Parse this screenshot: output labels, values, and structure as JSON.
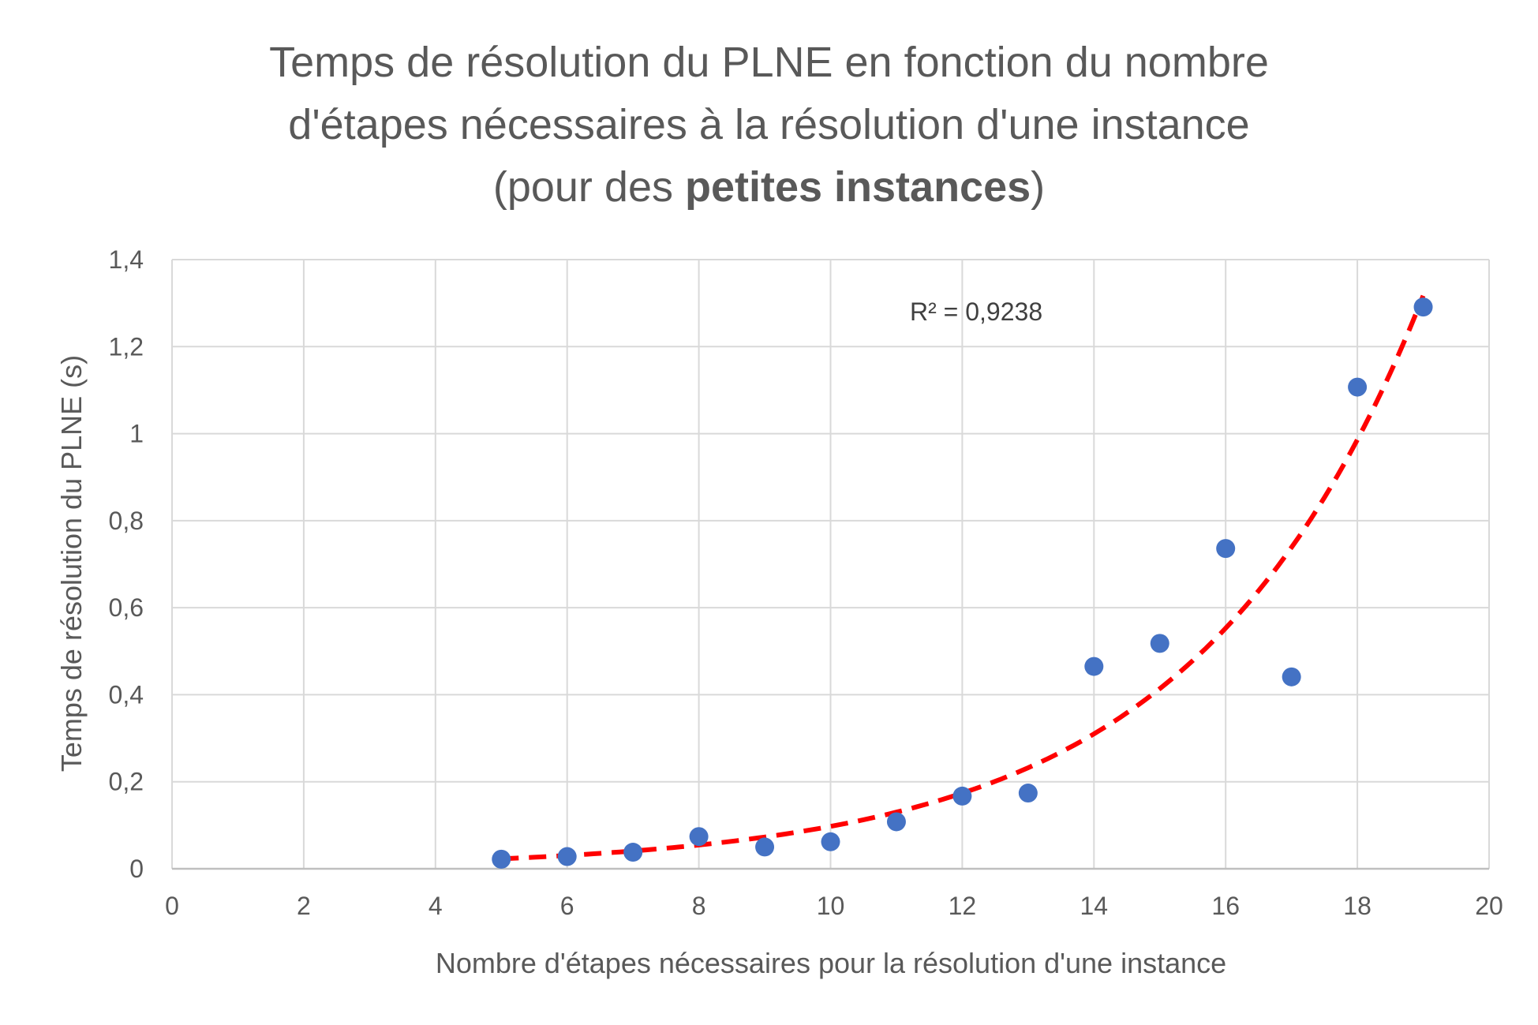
{
  "chart_data": {
    "type": "scatter",
    "title_line1": "Temps de résolution du PLNE en fonction du nombre",
    "title_line2": "d'étapes nécessaires à la résolution d'une instance",
    "title_line3_prefix": "(pour des ",
    "title_line3_bold": "petites instances",
    "title_line3_suffix": ")",
    "xlabel": "Nombre d'étapes nécessaires pour la résolution d'une instance",
    "ylabel": "Temps de résolution du PLNE (s)",
    "xlim": [
      0,
      20
    ],
    "ylim": [
      0,
      1.4
    ],
    "x_ticks": [
      "0",
      "2",
      "4",
      "6",
      "8",
      "10",
      "12",
      "14",
      "16",
      "18",
      "20"
    ],
    "y_ticks": [
      "0",
      "0,2",
      "0,4",
      "0,6",
      "0,8",
      "1",
      "1,2",
      "1,4"
    ],
    "grid": true,
    "series": [
      {
        "x": [
          5,
          6,
          7,
          8,
          9,
          10,
          11,
          12,
          13,
          14,
          15,
          16,
          17,
          18,
          19
        ],
        "y": [
          0.022,
          0.028,
          0.038,
          0.074,
          0.05,
          0.062,
          0.108,
          0.167,
          0.174,
          0.465,
          0.518,
          0.736,
          0.441,
          1.107,
          1.291
        ],
        "color": "#4472c4"
      }
    ],
    "trendline": {
      "type": "exponential",
      "color": "#ff0000",
      "style": "dashed",
      "x_range": [
        5,
        19
      ],
      "a": 0.0054,
      "b": 0.2893,
      "r_squared_label": "R² = 0,9238"
    }
  }
}
